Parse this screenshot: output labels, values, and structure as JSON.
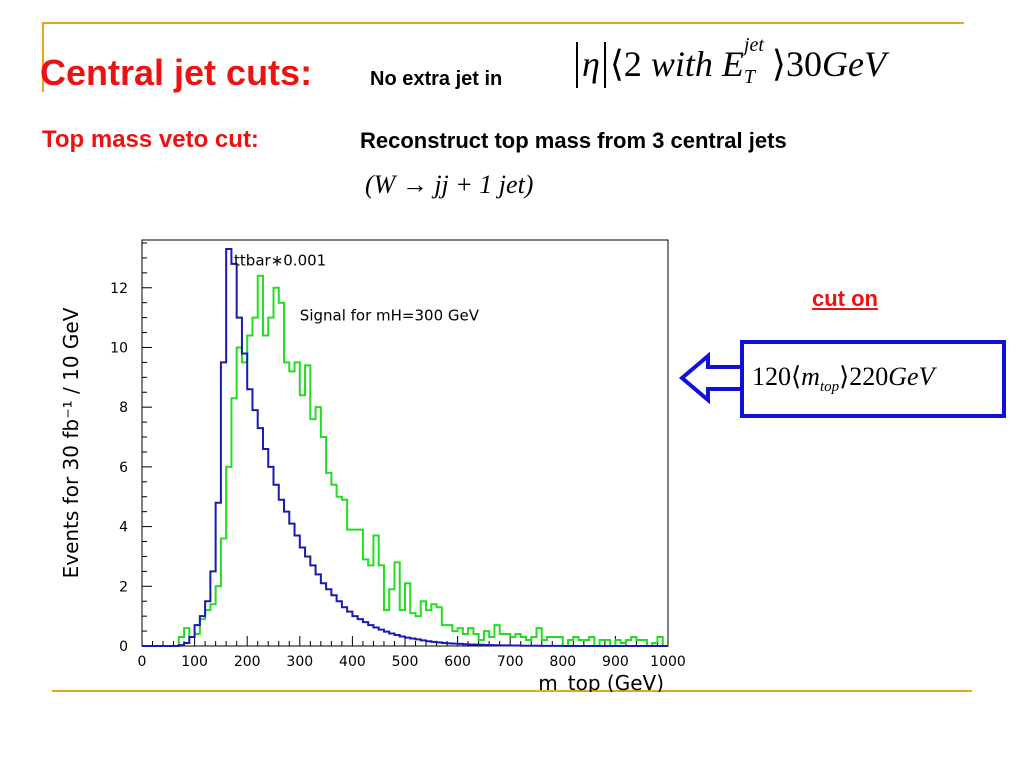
{
  "slide": {
    "heading_1": "Central jet cuts:",
    "heading_1_sub": "No extra jet in",
    "formula_1": {
      "eta": "η",
      "lt": "⟨",
      "two": "2",
      "with": "with",
      "E": "E",
      "sup": "jet",
      "sub": "T",
      "gt": "⟩",
      "value": "30",
      "unit": "GeV"
    },
    "heading_2": "Top mass veto cut:",
    "heading_2_sub": "Reconstruct top mass from 3 central jets",
    "formula_2": "(W → jj + 1 jet)",
    "cut_label": "cut on",
    "cut_formula": {
      "low": "120",
      "lt": "⟨",
      "m": "m",
      "sub": "top",
      "gt": "⟩",
      "high": "220",
      "unit": "GeV"
    }
  },
  "colors": {
    "red_title": "#ee1111",
    "accent_rule": "#e0a81a",
    "box_blue": "#1010dd",
    "ttbar_line": "#1a1ab0",
    "signal_line": "#22dd22"
  },
  "chart_data": {
    "type": "line",
    "xlabel": "m_top (GeV)",
    "ylabel": "Events for 30 fb⁻¹ / 10 GeV",
    "xlim": [
      0,
      1000
    ],
    "ylim": [
      0,
      13.6
    ],
    "xticks": [
      0,
      100,
      200,
      300,
      400,
      500,
      600,
      700,
      800,
      900,
      1000
    ],
    "yticks": [
      0,
      2,
      4,
      6,
      8,
      10,
      12
    ],
    "annotations": [
      "ttbar∗0.001",
      "Signal for mH=300 GeV"
    ],
    "series": [
      {
        "name": "ttbar∗0.001",
        "style": "step",
        "bin_width": 10,
        "x": [
          0,
          10,
          20,
          30,
          40,
          50,
          60,
          70,
          80,
          90,
          100,
          110,
          120,
          130,
          140,
          150,
          160,
          170,
          180,
          190,
          200,
          210,
          220,
          230,
          240,
          250,
          260,
          270,
          280,
          290,
          300,
          310,
          320,
          330,
          340,
          350,
          360,
          370,
          380,
          390,
          400,
          410,
          420,
          430,
          440,
          450,
          460,
          470,
          480,
          490,
          500,
          510,
          520,
          530,
          540,
          550,
          560,
          570,
          580,
          590,
          600,
          610,
          620,
          630,
          640,
          650,
          660,
          670,
          680,
          690,
          700,
          710,
          720,
          730,
          740,
          750,
          760,
          770,
          780,
          790,
          800,
          810,
          820,
          830,
          840,
          850,
          860,
          870,
          880,
          890,
          900,
          910,
          920,
          930,
          940,
          950,
          960,
          970,
          980,
          990
        ],
        "values": [
          0,
          0,
          0,
          0,
          0,
          0,
          0,
          0.03,
          0.1,
          0.3,
          0.7,
          1.0,
          1.5,
          2.5,
          4.8,
          9.5,
          13.3,
          12.8,
          11.0,
          9.8,
          8.6,
          7.9,
          7.3,
          6.6,
          6.0,
          5.4,
          4.9,
          4.5,
          4.1,
          3.7,
          3.3,
          3.0,
          2.7,
          2.4,
          2.1,
          1.9,
          1.7,
          1.5,
          1.3,
          1.15,
          1.0,
          0.9,
          0.8,
          0.7,
          0.62,
          0.55,
          0.48,
          0.42,
          0.37,
          0.32,
          0.28,
          0.25,
          0.22,
          0.19,
          0.16,
          0.14,
          0.12,
          0.1,
          0.09,
          0.08,
          0.07,
          0.06,
          0.05,
          0.045,
          0.04,
          0.035,
          0.03,
          0.025,
          0.02,
          0.02,
          0.015,
          0.015,
          0.01,
          0.01,
          0.01,
          0.01,
          0.005,
          0.005,
          0.005,
          0.005,
          0,
          0,
          0,
          0,
          0,
          0,
          0,
          0,
          0,
          0,
          0,
          0,
          0,
          0,
          0,
          0,
          0,
          0,
          0,
          0
        ]
      },
      {
        "name": "Signal for mH=300 GeV",
        "style": "step",
        "bin_width": 10,
        "x": [
          0,
          10,
          20,
          30,
          40,
          50,
          60,
          70,
          80,
          90,
          100,
          110,
          120,
          130,
          140,
          150,
          160,
          170,
          180,
          190,
          200,
          210,
          220,
          230,
          240,
          250,
          260,
          270,
          280,
          290,
          300,
          310,
          320,
          330,
          340,
          350,
          360,
          370,
          380,
          390,
          400,
          410,
          420,
          430,
          440,
          450,
          460,
          470,
          480,
          490,
          500,
          510,
          520,
          530,
          540,
          550,
          560,
          570,
          580,
          590,
          600,
          610,
          620,
          630,
          640,
          650,
          660,
          670,
          680,
          690,
          700,
          710,
          720,
          730,
          740,
          750,
          760,
          770,
          780,
          790,
          800,
          810,
          820,
          830,
          840,
          850,
          860,
          870,
          880,
          890,
          900,
          910,
          920,
          930,
          940,
          950,
          960,
          970,
          980,
          990
        ],
        "values": [
          0,
          0,
          0,
          0,
          0,
          0,
          0,
          0.3,
          0.6,
          0.3,
          0.4,
          0.9,
          1.2,
          1.4,
          2.0,
          3.6,
          6.0,
          8.3,
          10.0,
          9.5,
          10.4,
          11.0,
          12.4,
          10.4,
          11.0,
          12.0,
          11.5,
          9.5,
          9.2,
          9.5,
          8.4,
          9.4,
          7.6,
          8.0,
          7.0,
          5.8,
          5.4,
          5.0,
          4.9,
          3.9,
          3.9,
          3.9,
          2.9,
          2.7,
          3.7,
          2.7,
          1.2,
          1.9,
          2.8,
          1.2,
          2.1,
          1.1,
          1.0,
          1.5,
          1.2,
          1.4,
          1.3,
          0.7,
          0.7,
          0.5,
          0.6,
          0.4,
          0.6,
          0.4,
          0.2,
          0.5,
          0.3,
          0.7,
          0.4,
          0.4,
          0.3,
          0.4,
          0.3,
          0.2,
          0.3,
          0.6,
          0.2,
          0.3,
          0.3,
          0.3,
          0,
          0.2,
          0.3,
          0.2,
          0.2,
          0.3,
          0,
          0.2,
          0.2,
          0,
          0.2,
          0.1,
          0.2,
          0.3,
          0.2,
          0.2,
          0,
          0.1,
          0.3,
          0
        ]
      }
    ]
  }
}
